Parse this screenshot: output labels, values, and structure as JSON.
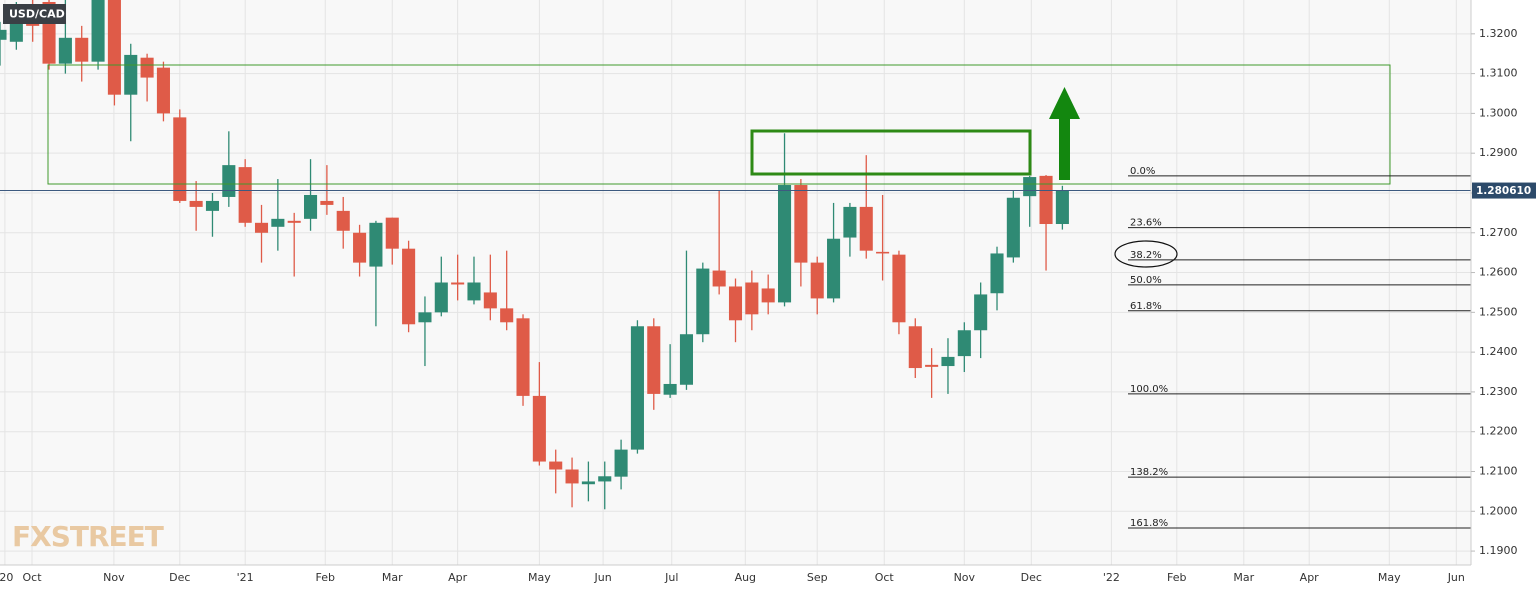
{
  "chart_data": {
    "type": "candlestick",
    "title": "USD/CAD",
    "up_color": "#2f8a74",
    "down_color": "#df5b48",
    "grid": true,
    "xlim": [
      0,
      90
    ],
    "xticks": [
      {
        "value": 0.3,
        "label": "'20"
      },
      {
        "value": 1.96,
        "label": "Oct"
      },
      {
        "value": 6.97,
        "label": "Nov"
      },
      {
        "value": 11.0,
        "label": "Dec"
      },
      {
        "value": 15.0,
        "label": "'21"
      },
      {
        "value": 19.9,
        "label": "Feb"
      },
      {
        "value": 24.0,
        "label": "Mar"
      },
      {
        "value": 28.0,
        "label": "Apr"
      },
      {
        "value": 33.0,
        "label": "May"
      },
      {
        "value": 36.9,
        "label": "Jun"
      },
      {
        "value": 41.1,
        "label": "Jul"
      },
      {
        "value": 45.6,
        "label": "Aug"
      },
      {
        "value": 50.0,
        "label": "Sep"
      },
      {
        "value": 54.1,
        "label": "Oct"
      },
      {
        "value": 59.0,
        "label": "Nov"
      },
      {
        "value": 63.1,
        "label": "Dec"
      },
      {
        "value": 68.0,
        "label": "'22"
      },
      {
        "value": 72.0,
        "label": "Feb"
      },
      {
        "value": 76.1,
        "label": "Mar"
      },
      {
        "value": 80.1,
        "label": "Apr"
      },
      {
        "value": 85.0,
        "label": "May"
      },
      {
        "value": 89.1,
        "label": "Jun"
      }
    ],
    "ylim": [
      1.1865,
      1.3285
    ],
    "yticks": [
      {
        "value": 1.19,
        "label": "1.1900"
      },
      {
        "value": 1.2,
        "label": "1.2000"
      },
      {
        "value": 1.21,
        "label": "1.2100"
      },
      {
        "value": 1.22,
        "label": "1.2200"
      },
      {
        "value": 1.23,
        "label": "1.2300"
      },
      {
        "value": 1.24,
        "label": "1.2400"
      },
      {
        "value": 1.25,
        "label": "1.2500"
      },
      {
        "value": 1.26,
        "label": "1.2600"
      },
      {
        "value": 1.27,
        "label": "1.2700"
      },
      {
        "value": 1.28,
        "label": "1.2800"
      },
      {
        "value": 1.29,
        "label": "1.2900"
      },
      {
        "value": 1.3,
        "label": "1.3000"
      },
      {
        "value": 1.31,
        "label": "1.3100"
      },
      {
        "value": 1.32,
        "label": "1.3200"
      }
    ],
    "last_price": {
      "value": 1.28061,
      "label": "1.280610"
    },
    "fib_levels": [
      {
        "value": 0,
        "label": "0.0%",
        "price": 1.2843
      },
      {
        "value": 23.6,
        "label": "23.6%",
        "price": 1.2713
      },
      {
        "value": 38.2,
        "label": "38.2%",
        "price": 1.2632
      },
      {
        "value": 50,
        "label": "50.0%",
        "price": 1.2569
      },
      {
        "value": 61.8,
        "label": "61.8%",
        "price": 1.2504
      },
      {
        "value": 100,
        "label": "100.0%",
        "price": 1.2295
      },
      {
        "value": 138.2,
        "label": "138.2%",
        "price": 1.2086
      },
      {
        "value": 161.8,
        "label": "161.8%",
        "price": 1.1958
      }
    ],
    "watermark": "FXSTREET",
    "open": [
      1.3185,
      1.318,
      1.327,
      1.328,
      1.3125,
      1.319,
      1.313,
      1.3285,
      1.3047,
      1.314,
      1.3115,
      1.299,
      1.278,
      1.2755,
      1.279,
      1.2865,
      1.2725,
      1.2715,
      1.273,
      1.2735,
      1.278,
      1.2755,
      1.27,
      1.2615,
      1.2738,
      1.266,
      1.2475,
      1.25,
      1.2575,
      1.253,
      1.255,
      1.251,
      1.2485,
      1.229,
      1.2125,
      1.2105,
      1.2068,
      1.2075,
      1.2087,
      1.2155,
      1.2465,
      1.2293,
      1.2318,
      1.2445,
      1.2605,
      1.2565,
      1.2575,
      1.256,
      1.2525,
      1.282,
      1.2625,
      1.2535,
      1.2688,
      1.2765,
      1.2652,
      1.2645,
      1.2465,
      1.2368,
      1.2365,
      1.239,
      1.2455,
      1.2548,
      1.2638,
      1.2792,
      1.2843,
      1.2722
    ],
    "high": [
      1.323,
      1.328,
      1.329,
      1.3285,
      1.3285,
      1.322,
      1.3285,
      1.3285,
      1.3175,
      1.315,
      1.313,
      1.301,
      1.283,
      1.28,
      1.2955,
      1.2885,
      1.277,
      1.2835,
      1.275,
      1.2885,
      1.287,
      1.279,
      1.272,
      1.273,
      1.2738,
      1.268,
      1.254,
      1.264,
      1.2645,
      1.264,
      1.2645,
      1.2655,
      1.2495,
      1.2375,
      1.2155,
      1.2135,
      1.2125,
      1.2125,
      1.218,
      1.248,
      1.2485,
      1.242,
      1.2655,
      1.2625,
      1.2805,
      1.2585,
      1.2605,
      1.2595,
      1.295,
      1.2835,
      1.264,
      1.2775,
      1.2775,
      1.2895,
      1.2795,
      1.2655,
      1.2485,
      1.241,
      1.2435,
      1.2475,
      1.2575,
      1.2665,
      1.2805,
      1.2843,
      1.2845,
      1.2818
    ],
    "low": [
      1.312,
      1.316,
      1.318,
      1.311,
      1.31,
      1.308,
      1.311,
      1.302,
      1.293,
      1.303,
      1.298,
      1.2775,
      1.2705,
      1.269,
      1.2765,
      1.2715,
      1.2625,
      1.2655,
      1.259,
      1.2705,
      1.2745,
      1.266,
      1.259,
      1.2465,
      1.262,
      1.245,
      1.2365,
      1.249,
      1.253,
      1.252,
      1.248,
      1.2455,
      1.2265,
      1.2115,
      1.2045,
      1.201,
      1.2025,
      1.2005,
      1.2055,
      1.2145,
      1.2255,
      1.2285,
      1.2305,
      1.2425,
      1.2545,
      1.2425,
      1.2455,
      1.2495,
      1.2515,
      1.2565,
      1.2495,
      1.2525,
      1.264,
      1.2635,
      1.258,
      1.2445,
      1.2335,
      1.2285,
      1.2295,
      1.235,
      1.2385,
      1.2505,
      1.2625,
      1.2715,
      1.2605,
      1.2708
    ],
    "close": [
      1.321,
      1.326,
      1.322,
      1.3125,
      1.319,
      1.313,
      1.3285,
      1.3047,
      1.3147,
      1.309,
      1.3,
      1.278,
      1.2765,
      1.278,
      1.287,
      1.2725,
      1.27,
      1.2735,
      1.2725,
      1.2795,
      1.277,
      1.2705,
      1.2625,
      1.2725,
      1.266,
      1.247,
      1.25,
      1.2575,
      1.257,
      1.2575,
      1.251,
      1.2475,
      1.229,
      1.2125,
      1.2105,
      1.207,
      1.2075,
      1.2088,
      1.2155,
      1.2465,
      1.2295,
      1.232,
      1.2445,
      1.261,
      1.2565,
      1.248,
      1.2495,
      1.2525,
      1.282,
      1.2625,
      1.2535,
      1.2685,
      1.2765,
      1.2655,
      1.2648,
      1.2475,
      1.236,
      1.2363,
      1.2388,
      1.2455,
      1.2545,
      1.2648,
      1.2788,
      1.284,
      1.2722,
      1.2806
    ]
  }
}
